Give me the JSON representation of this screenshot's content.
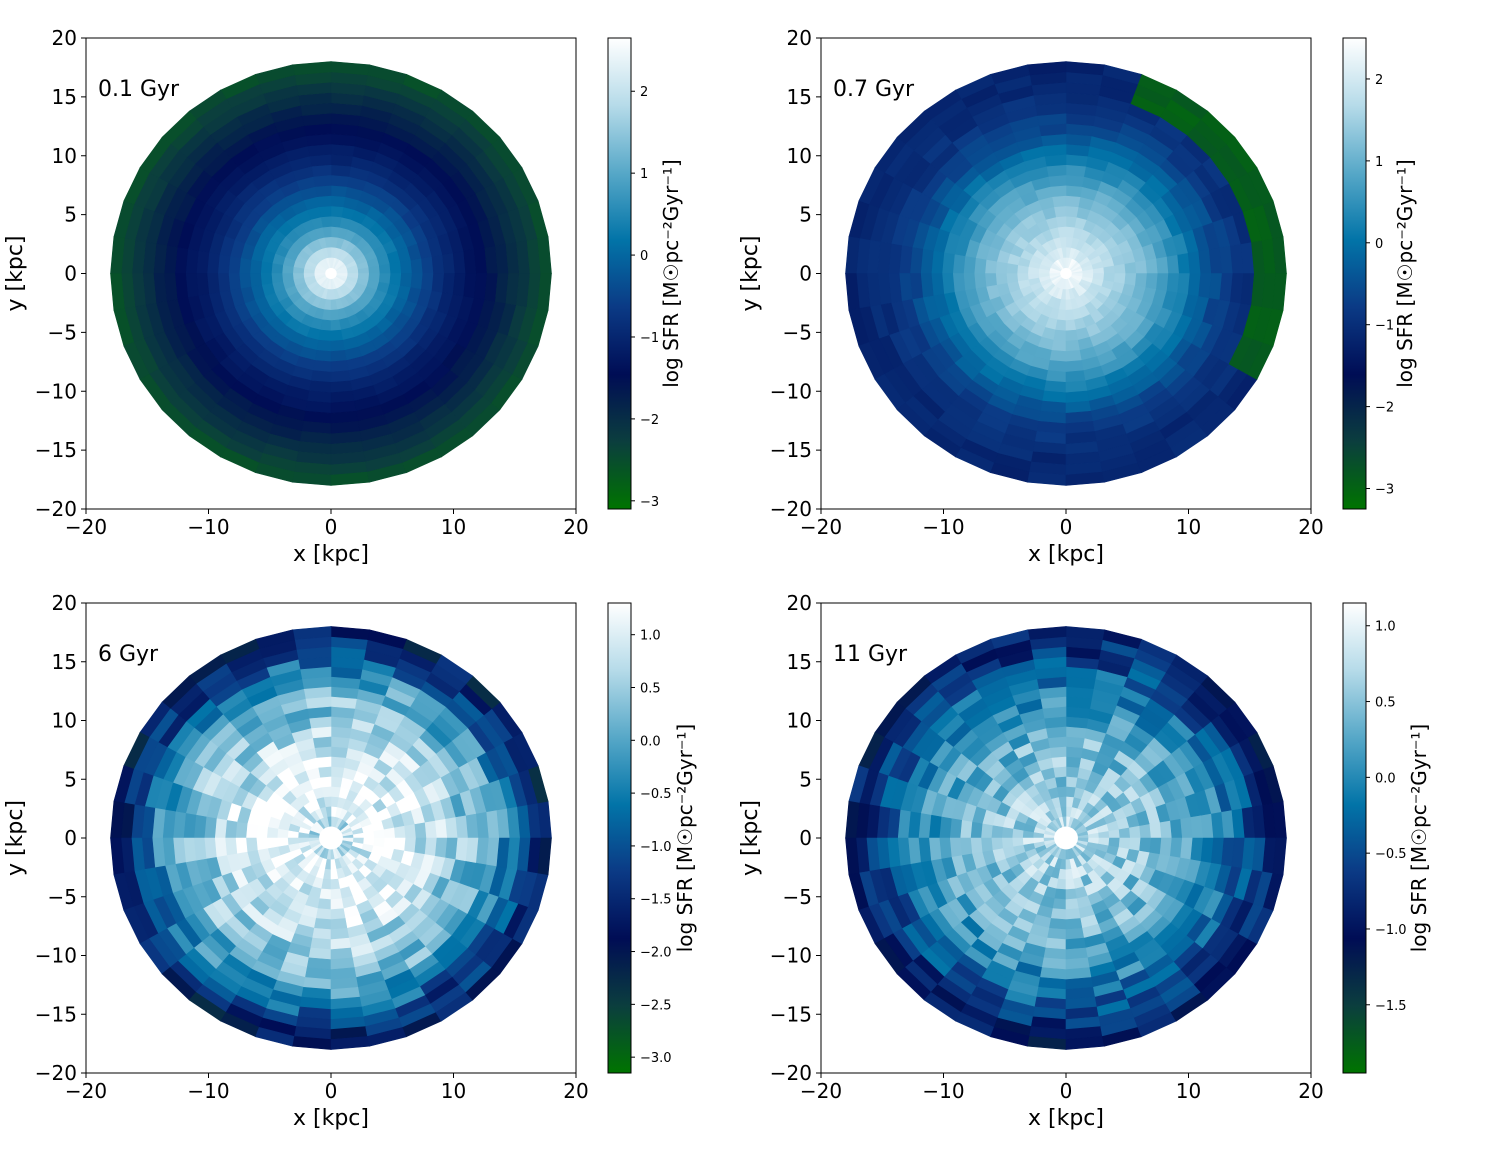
{
  "chart_data": [
    {
      "type": "heatmap",
      "annotation": "0.1 Gyr",
      "xlabel": "x [kpc]",
      "ylabel": "y [kpc]",
      "xlim": [
        -20,
        20
      ],
      "ylim": [
        -20,
        20
      ],
      "xticks": [
        -20,
        -10,
        0,
        10,
        20
      ],
      "yticks": [
        -20,
        -15,
        -10,
        -5,
        0,
        5,
        10,
        15,
        20
      ],
      "disk_radius_kpc": 18,
      "inner_hole_radius_kpc": 0.5,
      "colorbar": {
        "label": "log  SFR  [M☉pc⁻²Gyr⁻¹]",
        "range": [
          -3.1,
          2.65
        ],
        "ticks": [
          -3,
          -2,
          -1,
          0,
          1,
          2
        ],
        "colors": [
          "#007400",
          "#0b3e3e",
          "#000d55",
          "#0b3a85",
          "#0274a8",
          "#57a8c8",
          "#b6dbe9",
          "#ffffff"
        ]
      },
      "radial_profile": {
        "radius_kpc": [
          0.5,
          2,
          4,
          6,
          8,
          10,
          12,
          14,
          16,
          18
        ],
        "log_sfr": [
          2.6,
          1.8,
          0.7,
          0.0,
          -0.6,
          -1.1,
          -1.4,
          -1.8,
          -2.2,
          -2.6
        ]
      },
      "azimuthal_noise": 0.06,
      "patch_seed": 11
    },
    {
      "type": "heatmap",
      "annotation": "0.7 Gyr",
      "xlabel": "x [kpc]",
      "ylabel": "y [kpc]",
      "xlim": [
        -20,
        20
      ],
      "ylim": [
        -20,
        20
      ],
      "xticks": [
        -20,
        -10,
        0,
        10,
        20
      ],
      "yticks": [
        -20,
        -15,
        -10,
        -5,
        0,
        5,
        10,
        15,
        20
      ],
      "disk_radius_kpc": 18,
      "inner_hole_radius_kpc": 0.5,
      "colorbar": {
        "label": "log  SFR  [M☉pc⁻²Gyr⁻¹]",
        "range": [
          -3.25,
          2.5
        ],
        "ticks": [
          -3,
          -2,
          -1,
          0,
          1,
          2
        ],
        "colors": [
          "#007400",
          "#0b3e3e",
          "#000d55",
          "#0b3a85",
          "#0274a8",
          "#57a8c8",
          "#b6dbe9",
          "#ffffff"
        ]
      },
      "radial_profile": {
        "radius_kpc": [
          0.5,
          2,
          4,
          6,
          8,
          10,
          12,
          14,
          16,
          18
        ],
        "log_sfr": [
          2.4,
          2.0,
          1.6,
          1.2,
          0.7,
          0.1,
          -0.5,
          -0.9,
          -1.1,
          -1.2
        ]
      },
      "green_arc": {
        "center_deg": 20,
        "half_width_deg": 55,
        "min_radius_kpc": 15.5,
        "log_sfr": -2.9
      },
      "azimuthal_noise": 0.15,
      "patch_seed": 27
    },
    {
      "type": "heatmap",
      "annotation": "6 Gyr",
      "xlabel": "x [kpc]",
      "ylabel": "y [kpc]",
      "xlim": [
        -20,
        20
      ],
      "ylim": [
        -20,
        20
      ],
      "xticks": [
        -20,
        -10,
        0,
        10,
        20
      ],
      "yticks": [
        -20,
        -15,
        -10,
        -5,
        0,
        5,
        10,
        15,
        20
      ],
      "disk_radius_kpc": 18,
      "inner_hole_radius_kpc": 1.0,
      "colorbar": {
        "label": "log  SFR  [M☉pc⁻²Gyr⁻¹]",
        "range": [
          -3.15,
          1.3
        ],
        "ticks": [
          -3.0,
          -2.5,
          -2.0,
          -1.5,
          -1.0,
          -0.5,
          0.0,
          0.5,
          1.0
        ],
        "tick_labels": [
          "−3.0",
          "−2.5",
          "−2.0",
          "−1.5",
          "−1.0",
          "−0.5",
          "0.0",
          "0.5",
          "1.0"
        ],
        "colors": [
          "#007400",
          "#0b3e3e",
          "#000d55",
          "#0b3a85",
          "#0274a8",
          "#57a8c8",
          "#b6dbe9",
          "#ffffff"
        ]
      },
      "radial_profile": {
        "radius_kpc": [
          1,
          2,
          4,
          6,
          8,
          10,
          12,
          14,
          16,
          18
        ],
        "log_sfr": [
          0.6,
          0.9,
          1.1,
          1.0,
          0.8,
          0.5,
          0.2,
          -0.3,
          -1.2,
          -2.0
        ]
      },
      "azimuthal_noise": 0.55,
      "patch_seed": 61
    },
    {
      "type": "heatmap",
      "annotation": "11 Gyr",
      "xlabel": "x [kpc]",
      "ylabel": "y [kpc]",
      "xlim": [
        -20,
        20
      ],
      "ylim": [
        -20,
        20
      ],
      "xticks": [
        -20,
        -10,
        0,
        10,
        20
      ],
      "yticks": [
        -20,
        -15,
        -10,
        -5,
        0,
        5,
        10,
        15,
        20
      ],
      "disk_radius_kpc": 18,
      "inner_hole_radius_kpc": 1.0,
      "colorbar": {
        "label": "log  SFR  [M☉pc⁻²Gyr⁻¹]",
        "range": [
          -1.95,
          1.15
        ],
        "ticks": [
          -1.5,
          -1.0,
          -0.5,
          0.0,
          0.5,
          1.0
        ],
        "tick_labels": [
          "−1.5",
          "−1.0",
          "−0.5",
          "0.0",
          "0.5",
          "1.0"
        ],
        "colors": [
          "#007400",
          "#0b3e3e",
          "#000d55",
          "#0b3a85",
          "#0274a8",
          "#57a8c8",
          "#b6dbe9",
          "#ffffff"
        ]
      },
      "radial_profile": {
        "radius_kpc": [
          1,
          2,
          4,
          6,
          8,
          10,
          12,
          14,
          16,
          18
        ],
        "log_sfr": [
          0.8,
          0.7,
          0.6,
          0.5,
          0.4,
          0.2,
          0.0,
          -0.3,
          -0.7,
          -1.0
        ]
      },
      "azimuthal_noise": 0.35,
      "patch_seed": 97
    }
  ]
}
